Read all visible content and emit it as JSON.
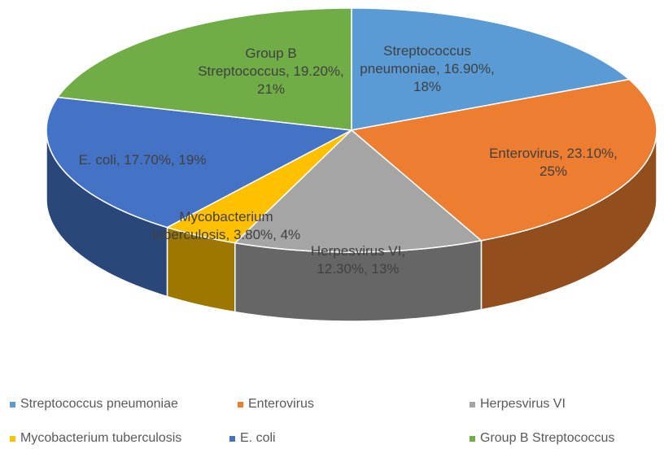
{
  "chart_data": {
    "type": "pie3d",
    "categories": [
      "Streptococcus pneumoniae",
      "Enterovirus",
      "Herpesvirus VI",
      "Mycobacterium tuberculosis",
      "E. coli",
      "Group B Streptococcus"
    ],
    "values": [
      16.9,
      23.1,
      12.3,
      3.8,
      17.7,
      19.2
    ],
    "data_labels": [
      "Streptococcus pneumoniae, 16.90%, 18%",
      "Enterovirus, 23.10%, 25%",
      "Herpesvirus VI, 12.30%, 13%",
      "Mycobacterium tuberculosis, 3.80%, 4%",
      "E. coli, 17.70%, 19%",
      "Group B Streptococcus, 19.20%, 21%"
    ],
    "colors": [
      "#5b9bd5",
      "#ed7d31",
      "#a5a5a5",
      "#ffc000",
      "#4472c4",
      "#70ad47"
    ],
    "legend": "bottom"
  }
}
